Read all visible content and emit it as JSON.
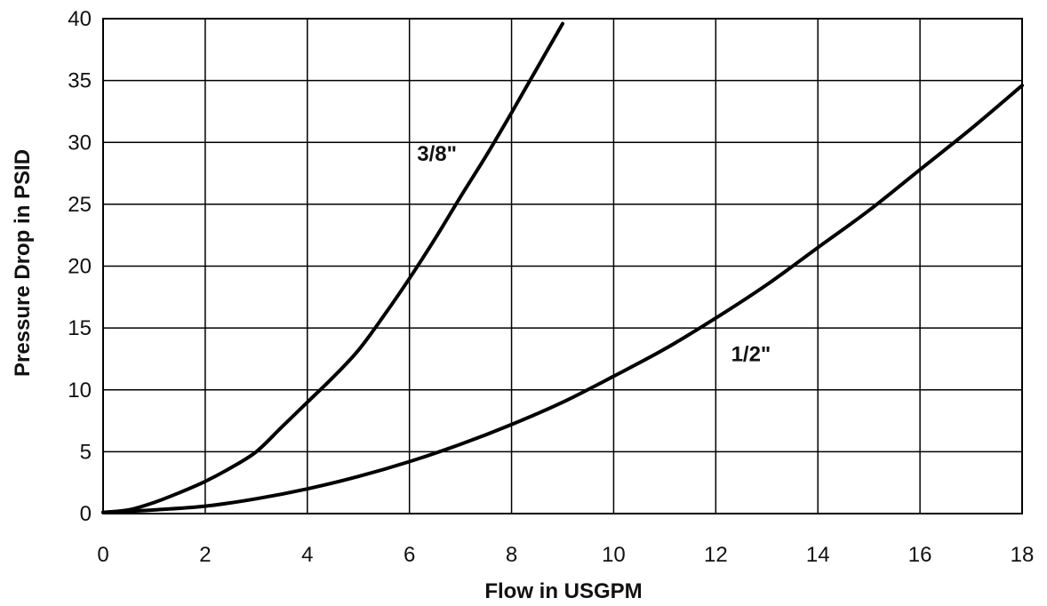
{
  "chart_data": {
    "type": "line",
    "title": "",
    "xlabel": "Flow in USGPM",
    "ylabel": "Pressure Drop in PSID",
    "xlim": [
      0,
      18
    ],
    "ylim": [
      0,
      40
    ],
    "x_ticks": [
      0,
      2,
      4,
      6,
      8,
      10,
      12,
      14,
      16,
      18
    ],
    "y_ticks": [
      0,
      5,
      10,
      15,
      20,
      25,
      30,
      35,
      40
    ],
    "grid": true,
    "legend": "none",
    "series": [
      {
        "name": "3/8\"",
        "label_at": [
          6.15,
          28.5
        ],
        "x": [
          0,
          0.5,
          1,
          1.5,
          2,
          2.5,
          3,
          3.5,
          4,
          4.5,
          5,
          5.5,
          6,
          6.5,
          7,
          7.5,
          8,
          8.5,
          9
        ],
        "y": [
          0.1,
          0.3,
          0.9,
          1.7,
          2.6,
          3.7,
          5.0,
          7.0,
          9.0,
          11.0,
          13.2,
          16.0,
          19.0,
          22.2,
          25.6,
          28.9,
          32.4,
          36.0,
          39.6
        ]
      },
      {
        "name": "1/2\"",
        "label_at": [
          12.3,
          12.3
        ],
        "x": [
          0,
          1,
          2,
          3,
          4,
          5,
          6,
          7,
          8,
          9,
          10,
          11,
          12,
          13,
          14,
          15,
          16,
          17,
          18
        ],
        "y": [
          0.1,
          0.3,
          0.6,
          1.2,
          2.0,
          3.0,
          4.2,
          5.6,
          7.2,
          9.0,
          11.1,
          13.3,
          15.8,
          18.5,
          21.5,
          24.5,
          27.8,
          31.1,
          34.6
        ]
      }
    ]
  }
}
